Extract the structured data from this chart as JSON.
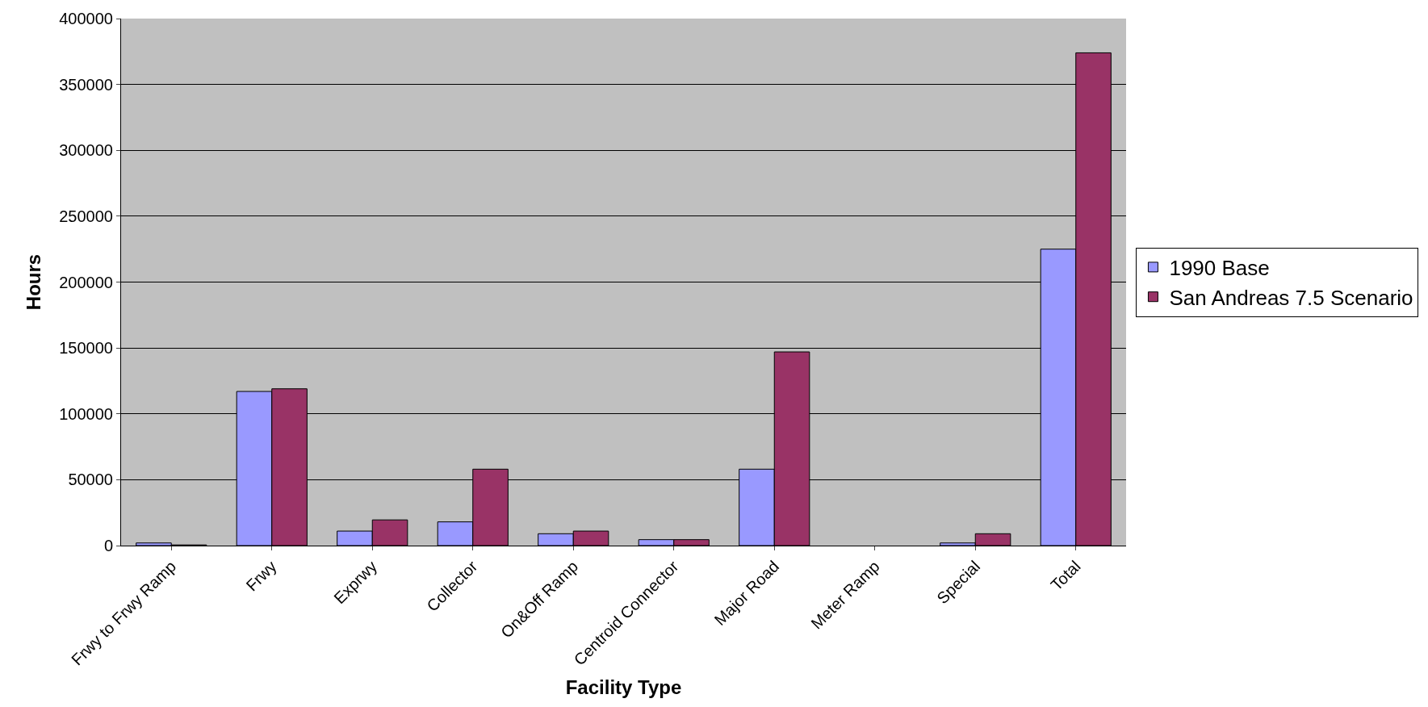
{
  "chart_data": {
    "type": "bar",
    "xlabel": "Facility Type",
    "ylabel": "Hours",
    "categories": [
      "Frwy to Frwy Ramp",
      "Frwy",
      "Exprwy",
      "Collector",
      "On&Off Ramp",
      "Centroid Connector",
      "Major Road",
      "Meter Ramp",
      "Special",
      "Total"
    ],
    "series": [
      {
        "name": "1990 Base",
        "color": "#9999ff",
        "values": [
          2000,
          117000,
          11000,
          18000,
          9000,
          4500,
          58000,
          0,
          2000,
          225000
        ]
      },
      {
        "name": "San Andreas 7.5 Scenario",
        "color": "#993366",
        "values": [
          500,
          119000,
          19500,
          58000,
          11000,
          4500,
          147000,
          0,
          9000,
          374000
        ]
      }
    ],
    "ylim": [
      0,
      400000
    ],
    "yticks": [
      0,
      50000,
      100000,
      150000,
      200000,
      250000,
      300000,
      350000,
      400000
    ],
    "grid": "y",
    "legend": "right"
  }
}
